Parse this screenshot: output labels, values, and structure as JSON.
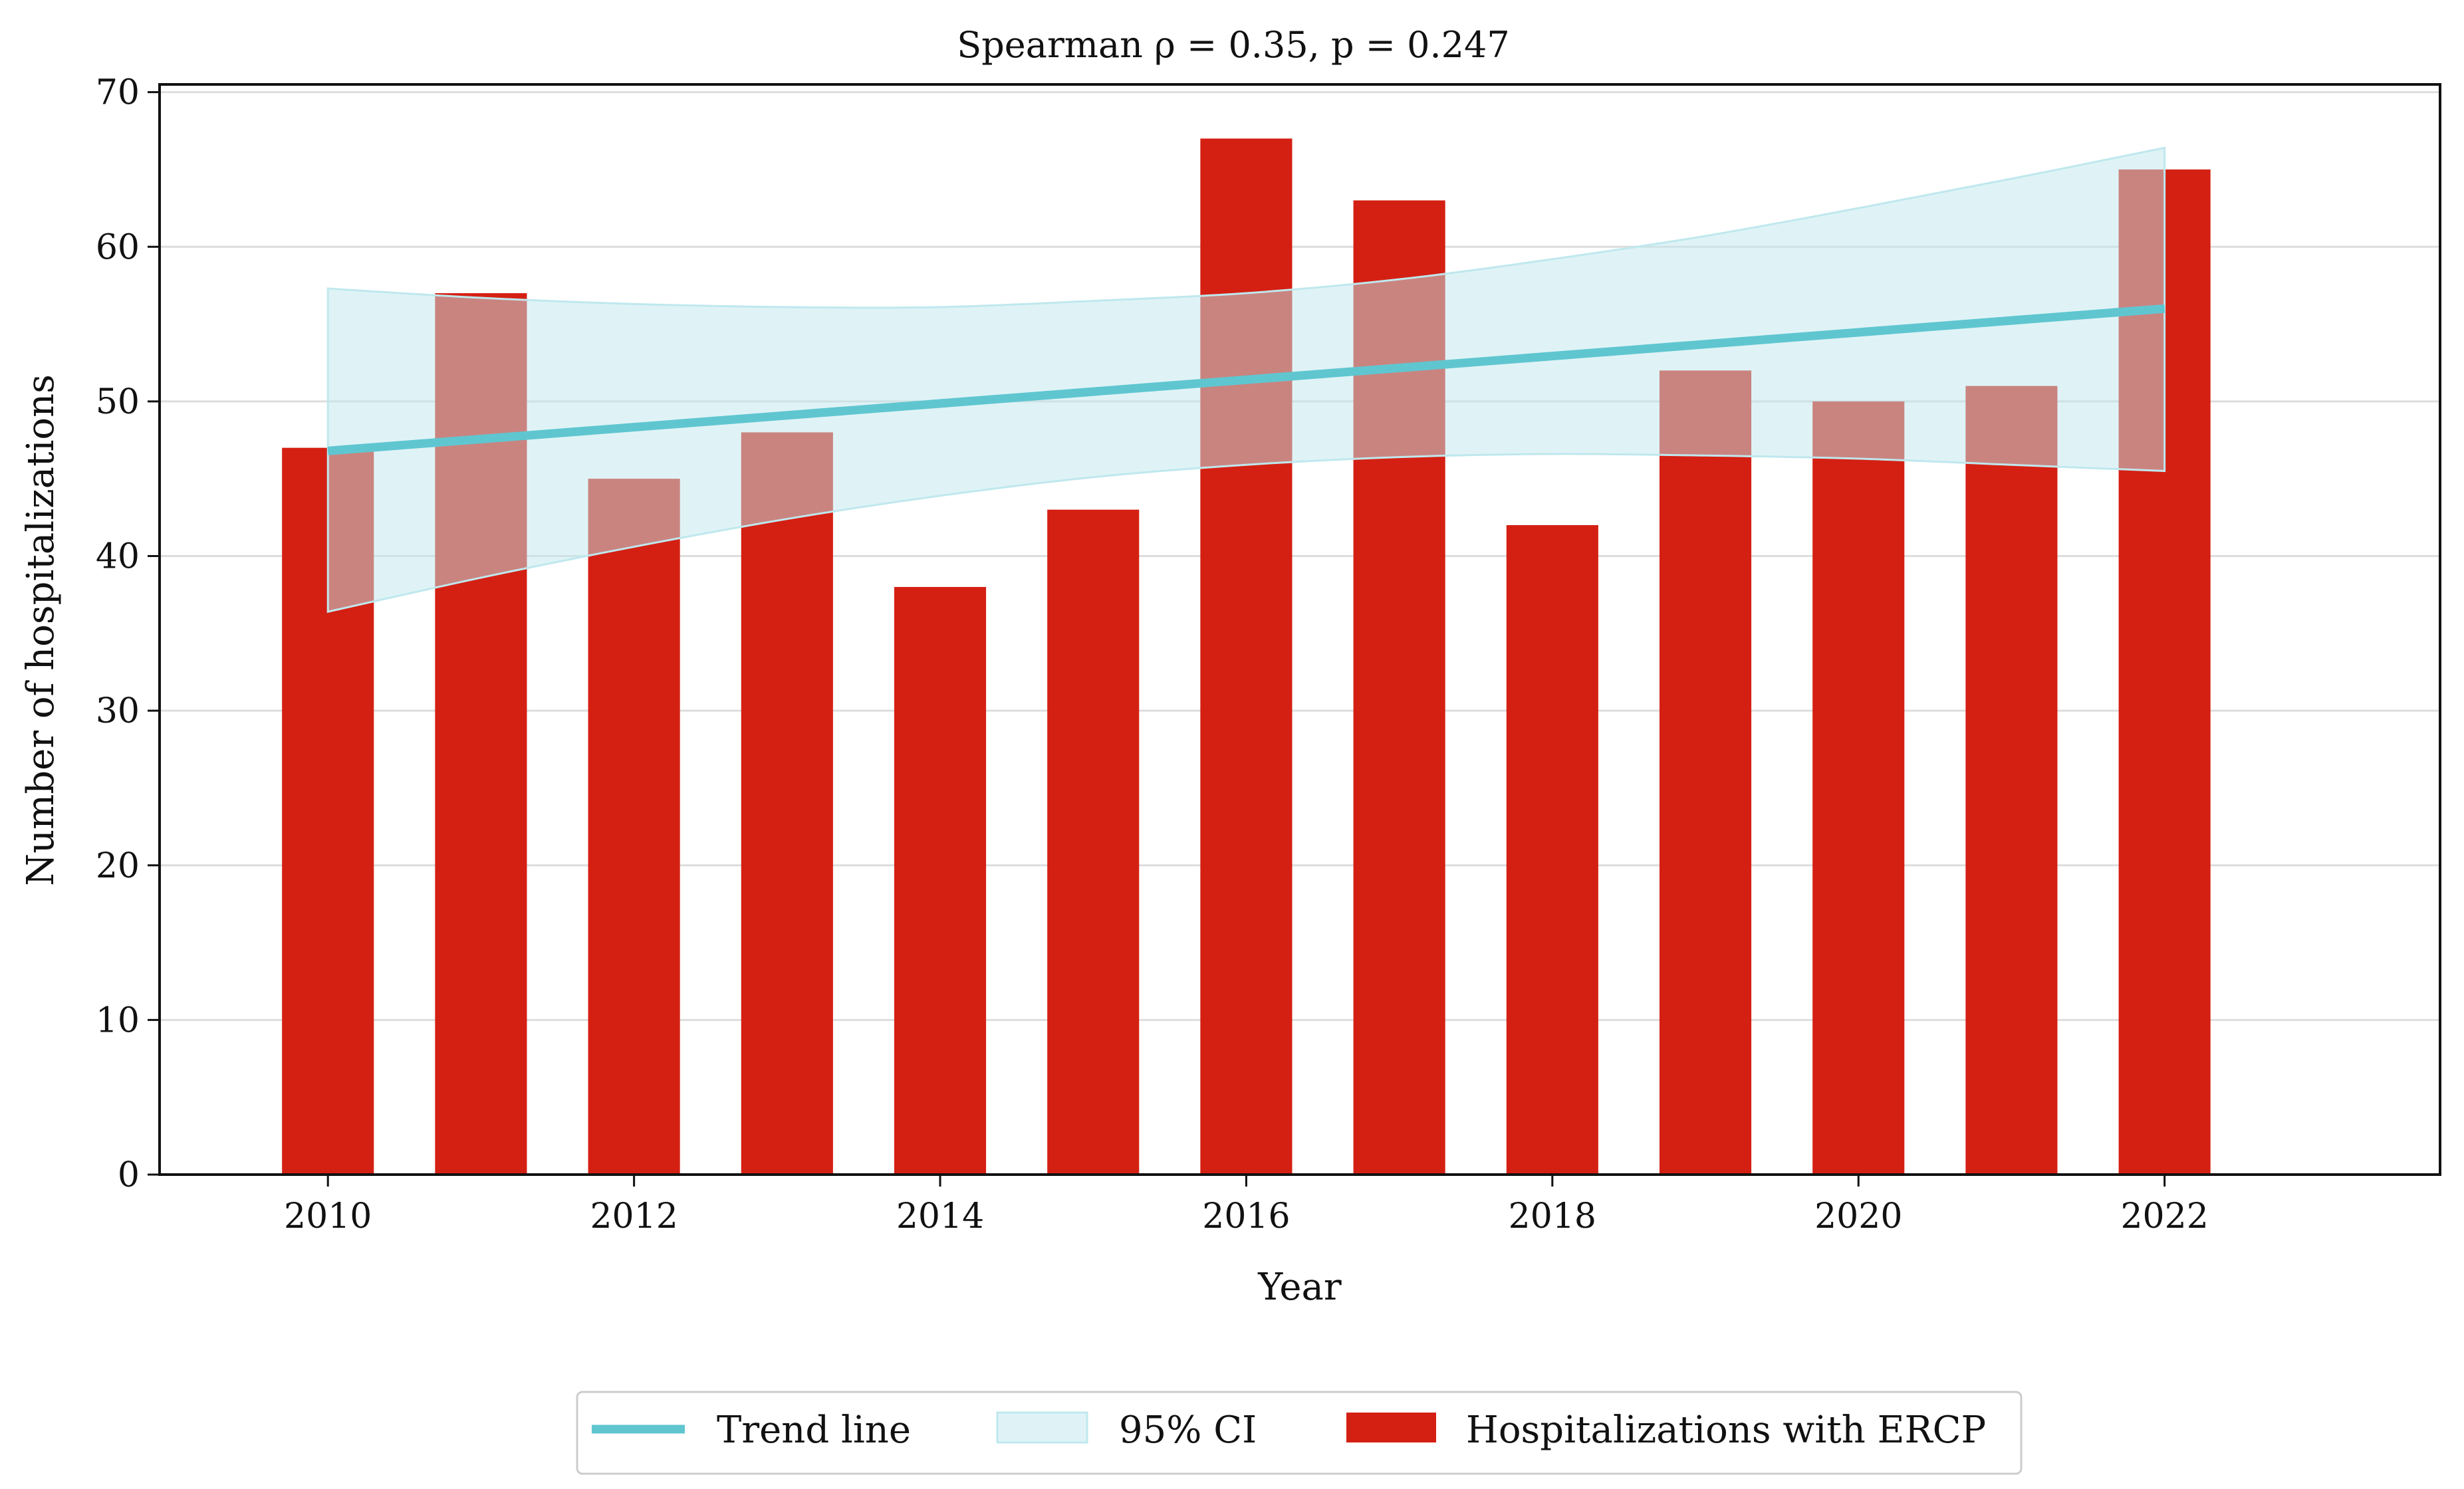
{
  "chart_data": {
    "type": "bar",
    "title": "Spearman ρ = 0.35, p = 0.247",
    "xlabel": "Year",
    "ylabel": "Number of hospitalizations",
    "categories": [
      2010,
      2011,
      2012,
      2013,
      2014,
      2015,
      2016,
      2017,
      2018,
      2019,
      2020,
      2021,
      2022
    ],
    "series": [
      {
        "name": "Hospitalizations with ERCP",
        "type": "bar",
        "color": "#d42013",
        "values": [
          47,
          57,
          45,
          48,
          38,
          43,
          67,
          63,
          42,
          52,
          50,
          51,
          65
        ]
      },
      {
        "name": "Trend line",
        "type": "line",
        "color": "#5fc6d0",
        "x": [
          2010,
          2022
        ],
        "values": [
          46.8,
          56.0
        ]
      },
      {
        "name": "95% CI",
        "type": "band",
        "color": "#bfe8ee",
        "x": [
          2010,
          2011,
          2012,
          2013,
          2014,
          2015,
          2016,
          2017,
          2018,
          2019,
          2020,
          2021,
          2022
        ],
        "lower": [
          36.4,
          38.6,
          40.6,
          42.4,
          43.9,
          45.1,
          45.9,
          46.4,
          46.6,
          46.5,
          46.3,
          45.9,
          45.5
        ],
        "upper": [
          57.3,
          56.7,
          56.3,
          56.1,
          56.1,
          56.5,
          57.0,
          57.9,
          59.2,
          60.7,
          62.5,
          64.4,
          66.4
        ]
      }
    ],
    "xticks": [
      2010,
      2012,
      2014,
      2016,
      2018,
      2020,
      2022
    ],
    "yticks": [
      0,
      10,
      20,
      30,
      40,
      50,
      60,
      70
    ],
    "xlim": [
      2008.9,
      2023.8
    ],
    "ylim": [
      0,
      70.5
    ],
    "grid": "horizontal",
    "legend": {
      "position": "bottom-center",
      "entries": [
        "Trend line",
        "95% CI",
        "Hospitalizations with ERCP"
      ]
    }
  }
}
